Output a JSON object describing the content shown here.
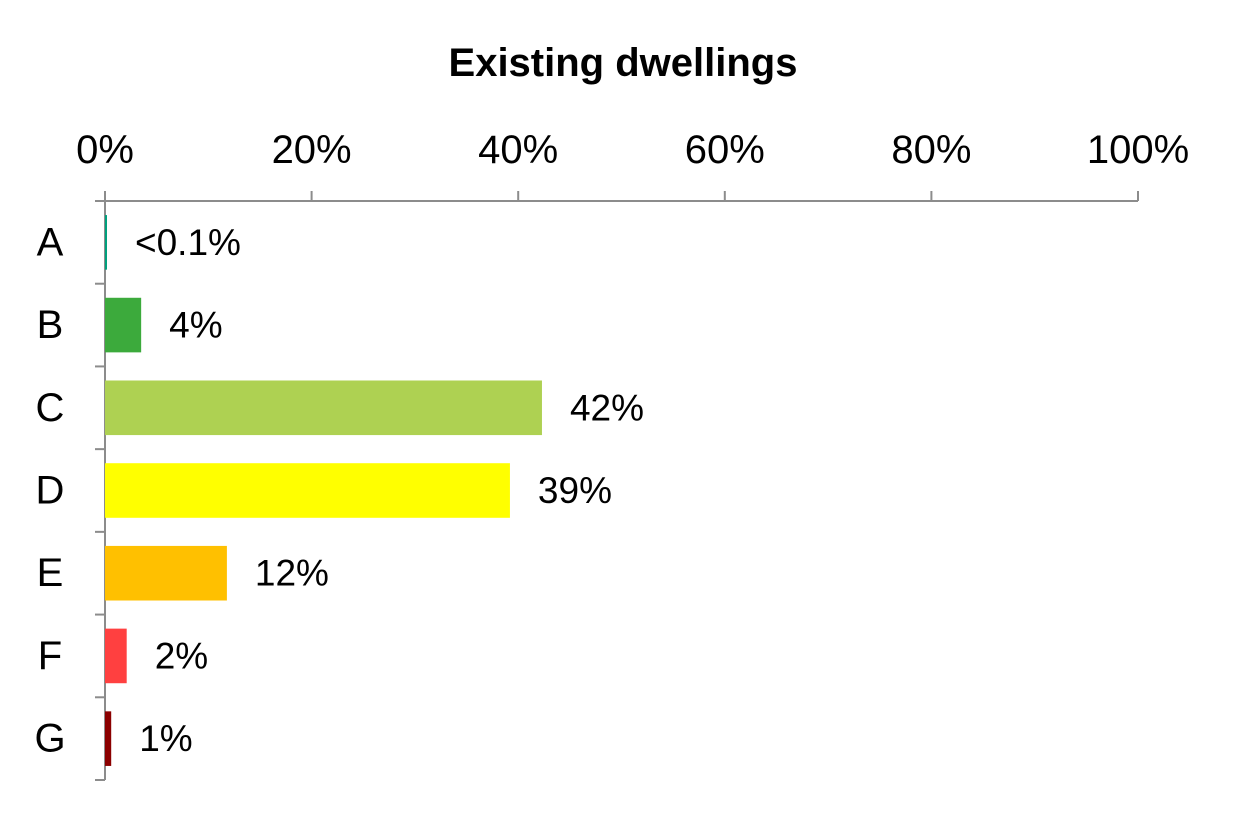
{
  "chart_data": {
    "type": "bar",
    "orientation": "horizontal",
    "title": "Existing dwellings",
    "xlabel": "",
    "ylabel": "",
    "x_axis_position": "top",
    "xlim": [
      0,
      100
    ],
    "x_ticks": [
      0,
      20,
      40,
      60,
      80,
      100
    ],
    "x_tick_labels": [
      "0%",
      "20%",
      "40%",
      "60%",
      "80%",
      "100%"
    ],
    "categories": [
      "A",
      "B",
      "C",
      "D",
      "E",
      "F",
      "G"
    ],
    "values": [
      0.1,
      3.5,
      42.3,
      39.2,
      11.8,
      2.1,
      0.6
    ],
    "data_labels": [
      "<0.1%",
      "4%",
      "42%",
      "39%",
      "12%",
      "2%",
      "1%"
    ],
    "colors": [
      "#00A07D",
      "#3CAA3C",
      "#AED152",
      "#FFFF00",
      "#FFC000",
      "#FF4040",
      "#8B0000"
    ],
    "grid": false,
    "legend": "none"
  }
}
